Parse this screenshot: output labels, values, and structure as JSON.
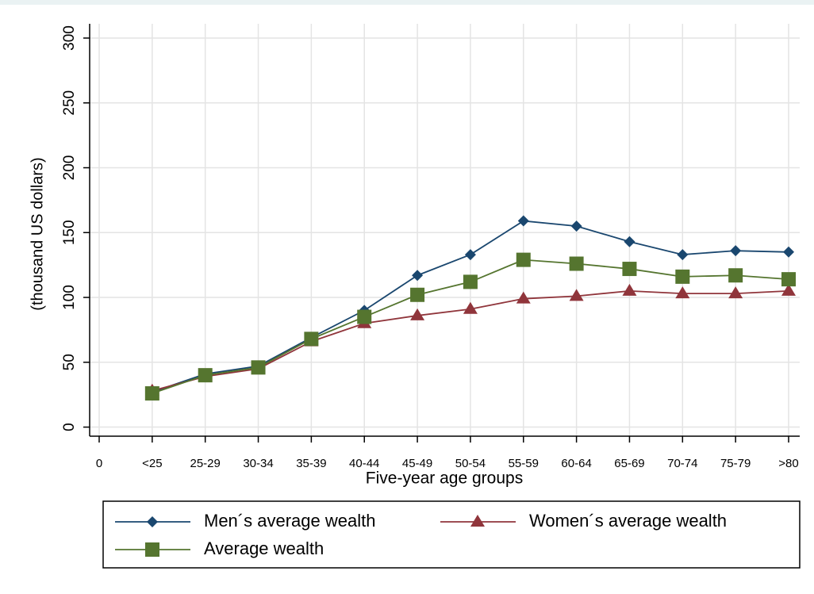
{
  "chart_data": {
    "type": "line",
    "x_label": "Five-year age groups",
    "y_label": "(thousand US dollars)",
    "categories": [
      "0",
      "<25",
      "25-29",
      "30-34",
      "35-39",
      "40-44",
      "45-49",
      "50-54",
      "55-59",
      "60-64",
      "65-69",
      "70-74",
      "75-79",
      ">80"
    ],
    "series": [
      {
        "name": "Men´s average wealth",
        "color": "#1a476f",
        "marker": "diamond",
        "values": [
          null,
          27,
          41,
          47,
          69,
          90,
          117,
          133,
          159,
          155,
          143,
          133,
          136,
          135
        ]
      },
      {
        "name": "Women´s average wealth",
        "color": "#90353b",
        "marker": "triangle",
        "values": [
          null,
          28,
          39,
          45,
          66,
          80,
          86,
          91,
          99,
          101,
          105,
          103,
          103,
          105
        ]
      },
      {
        "name": "Average wealth",
        "color": "#55752f",
        "marker": "square",
        "values": [
          null,
          26,
          40,
          46,
          68,
          85,
          102,
          112,
          129,
          126,
          122,
          116,
          117,
          114
        ]
      }
    ],
    "ylim": [
      -7,
      311
    ],
    "yticks": [
      0,
      50,
      100,
      150,
      200,
      250,
      300
    ],
    "grid": true
  }
}
